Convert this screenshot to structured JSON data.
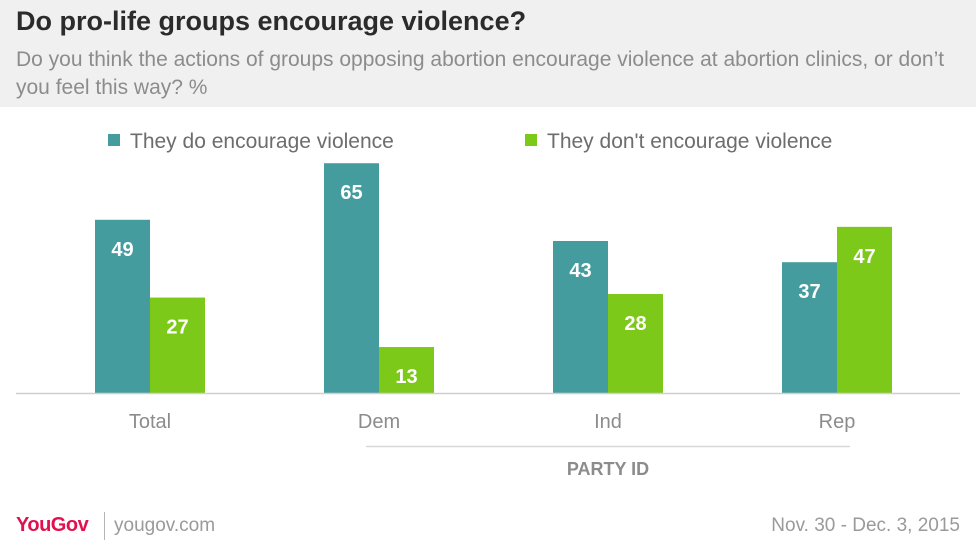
{
  "title": "Do pro-life groups encourage violence?",
  "subtitle": "Do you think the actions of groups opposing abortion encourage violence at abortion clinics, or don’t you feel this way? %",
  "colors": {
    "series1": "#459c9f",
    "series2": "#7dc91a",
    "header_bg": "#f0f0f0",
    "brand": "#e0114e"
  },
  "chart_data": {
    "type": "bar",
    "title": "Do pro-life groups encourage violence?",
    "categories": [
      "Total",
      "Dem",
      "Ind",
      "Rep"
    ],
    "series": [
      {
        "name": "They do encourage violence",
        "values": [
          49,
          65,
          43,
          37
        ]
      },
      {
        "name": "They don't encourage violence",
        "values": [
          27,
          13,
          28,
          47
        ]
      }
    ],
    "group_label": "PARTY ID",
    "xlabel": "",
    "ylabel": "",
    "ylim": [
      0,
      70
    ],
    "grid": false,
    "legend_position": "top"
  },
  "footer": {
    "logo": "YouGov",
    "url": "yougov.com",
    "date": "Nov. 30 - Dec. 3, 2015"
  }
}
